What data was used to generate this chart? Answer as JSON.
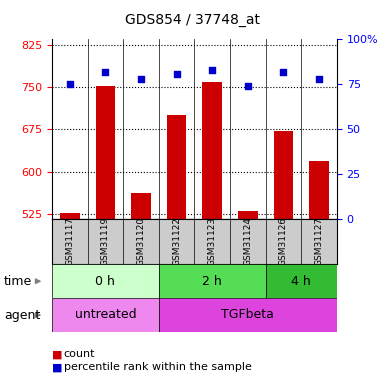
{
  "title": "GDS854 / 37748_at",
  "samples": [
    "GSM31117",
    "GSM31119",
    "GSM31120",
    "GSM31122",
    "GSM31123",
    "GSM31124",
    "GSM31126",
    "GSM31127"
  ],
  "counts": [
    527,
    752,
    562,
    700,
    760,
    530,
    672,
    618
  ],
  "percentiles": [
    75,
    82,
    78,
    81,
    83,
    74,
    82,
    78
  ],
  "ylim_left": [
    515,
    835
  ],
  "ylim_right": [
    0,
    100
  ],
  "yticks_left": [
    525,
    600,
    675,
    750,
    825
  ],
  "yticks_right": [
    0,
    25,
    50,
    75,
    100
  ],
  "bar_color": "#cc0000",
  "dot_color": "#0000cc",
  "sample_box_color": "#cccccc",
  "time_groups": [
    {
      "label": "0 h",
      "start": 0,
      "end": 3,
      "color": "#ccffcc"
    },
    {
      "label": "2 h",
      "start": 3,
      "end": 6,
      "color": "#55dd55"
    },
    {
      "label": "4 h",
      "start": 6,
      "end": 8,
      "color": "#33bb33"
    }
  ],
  "agent_groups": [
    {
      "label": "untreated",
      "start": 0,
      "end": 3,
      "color": "#ee88ee"
    },
    {
      "label": "TGFbeta",
      "start": 3,
      "end": 8,
      "color": "#dd44dd"
    }
  ],
  "legend_count_label": "count",
  "legend_percentile_label": "percentile rank within the sample"
}
